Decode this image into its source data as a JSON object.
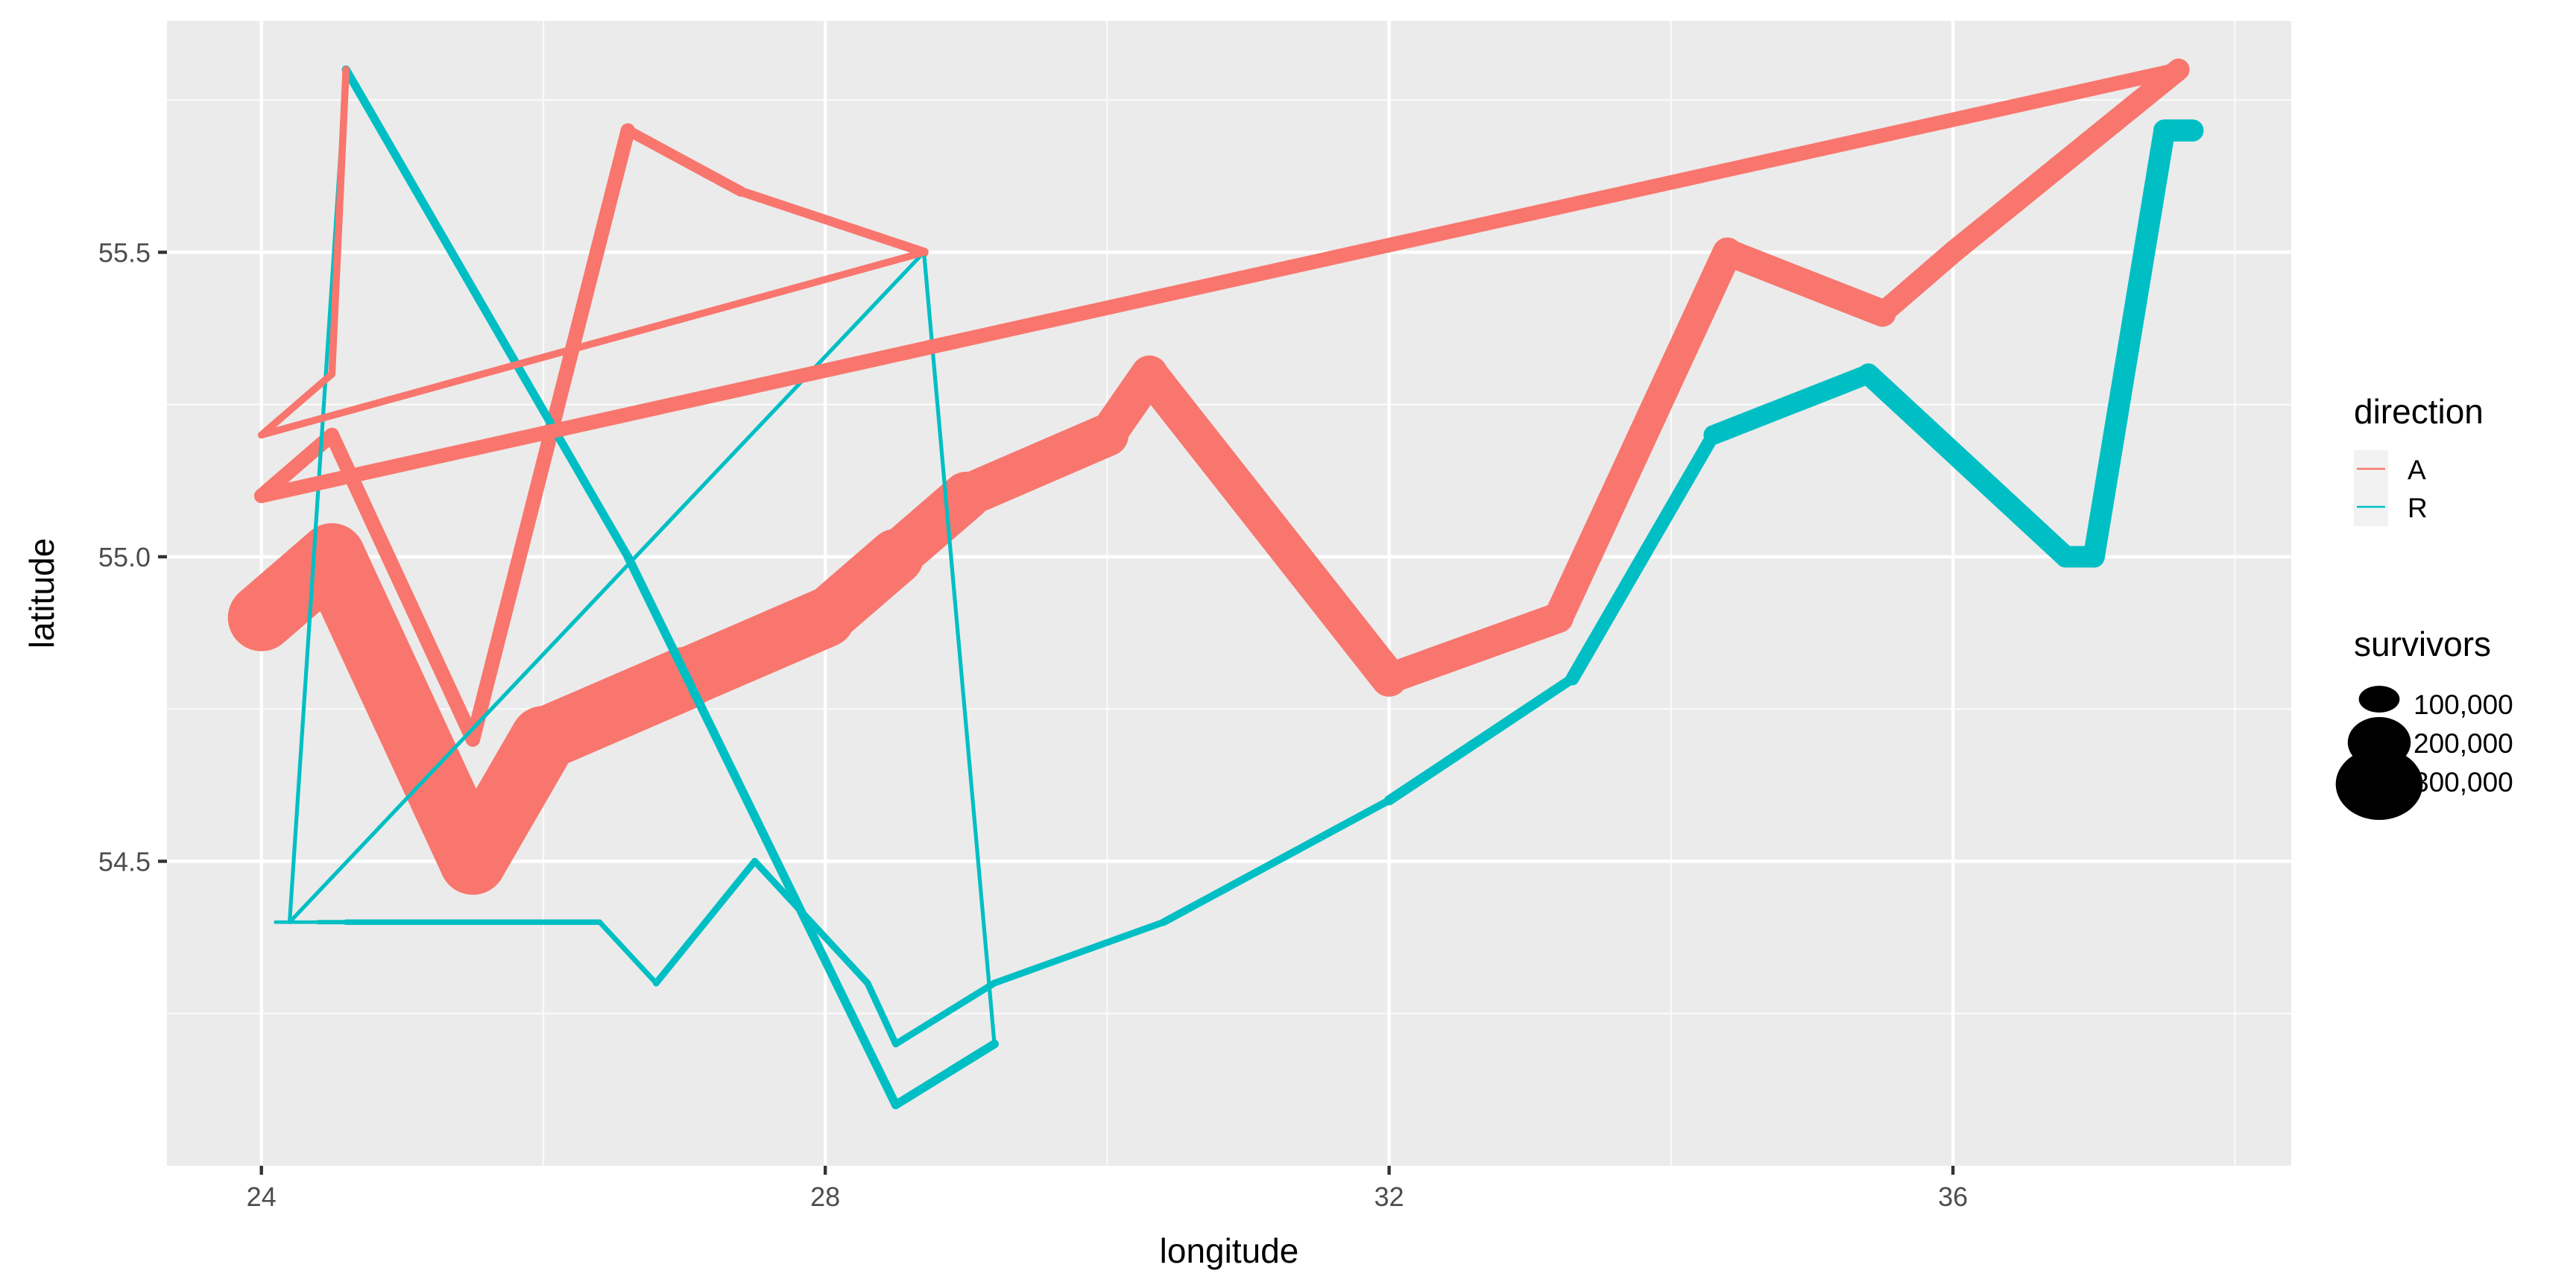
{
  "chart_data": {
    "type": "line",
    "title": "",
    "xlabel": "longitude",
    "ylabel": "latitude",
    "xlim": [
      23.33,
      38.4
    ],
    "ylim": [
      54.0,
      55.88
    ],
    "x_ticks": [
      24,
      28,
      32,
      36
    ],
    "x_tick_labels": [
      "24",
      "28",
      "32",
      "36"
    ],
    "y_ticks": [
      54.5,
      55.0,
      55.5
    ],
    "y_tick_labels": [
      "54.5",
      "55.0",
      "55.5"
    ],
    "x_minor_ticks": [
      26,
      30,
      34,
      38
    ],
    "y_minor_ticks": [
      54.25,
      54.75,
      55.25,
      55.75
    ],
    "grid": true,
    "panel_background": "#ebebeb",
    "legend_position": "right",
    "legends": {
      "color": {
        "title": "direction",
        "entries": [
          {
            "label": "A",
            "color": "#f8766d"
          },
          {
            "label": "R",
            "color": "#00bfc4"
          }
        ]
      },
      "size": {
        "title": "survivors",
        "entries": [
          {
            "label": "100,000",
            "value": 100000
          },
          {
            "label": "200,000",
            "value": 200000
          },
          {
            "label": "300,000",
            "value": 300000
          }
        ]
      }
    },
    "series": [
      {
        "group": 1,
        "direction": "A",
        "color": "#f8766d",
        "points": [
          {
            "x": 24.0,
            "y": 54.9,
            "survivors": 340000
          },
          {
            "x": 24.5,
            "y": 55.0,
            "survivors": 340000
          },
          {
            "x": 25.5,
            "y": 54.5,
            "survivors": 340000
          },
          {
            "x": 26.0,
            "y": 54.7,
            "survivors": 320000
          },
          {
            "x": 27.0,
            "y": 54.8,
            "survivors": 300000
          },
          {
            "x": 28.0,
            "y": 54.9,
            "survivors": 280000
          },
          {
            "x": 28.5,
            "y": 55.0,
            "survivors": 240000
          },
          {
            "x": 29.0,
            "y": 55.1,
            "survivors": 210000
          },
          {
            "x": 30.0,
            "y": 55.2,
            "survivors": 180000
          },
          {
            "x": 30.3,
            "y": 55.3,
            "survivors": 175000
          },
          {
            "x": 32.0,
            "y": 54.8,
            "survivors": 145000
          },
          {
            "x": 33.2,
            "y": 54.9,
            "survivors": 140000
          },
          {
            "x": 34.4,
            "y": 55.5,
            "survivors": 127100
          },
          {
            "x": 35.5,
            "y": 55.4,
            "survivors": 100000
          },
          {
            "x": 36.0,
            "y": 55.5,
            "survivors": 100000
          },
          {
            "x": 37.6,
            "y": 55.8,
            "survivors": 100000
          }
        ]
      },
      {
        "group": 1,
        "direction": "R",
        "color": "#00bfc4",
        "points": [
          {
            "x": 37.7,
            "y": 55.7,
            "survivors": 100000
          },
          {
            "x": 37.5,
            "y": 55.7,
            "survivors": 98000
          },
          {
            "x": 37.0,
            "y": 55.0,
            "survivors": 97000
          },
          {
            "x": 36.8,
            "y": 55.0,
            "survivors": 96000
          },
          {
            "x": 35.4,
            "y": 55.3,
            "survivors": 87000
          },
          {
            "x": 34.3,
            "y": 55.2,
            "survivors": 55000
          },
          {
            "x": 33.3,
            "y": 54.8,
            "survivors": 37000
          },
          {
            "x": 32.0,
            "y": 54.6,
            "survivors": 24000
          },
          {
            "x": 30.4,
            "y": 54.4,
            "survivors": 20000
          },
          {
            "x": 29.2,
            "y": 54.3,
            "survivors": 20000
          },
          {
            "x": 28.5,
            "y": 54.2,
            "survivors": 20000
          },
          {
            "x": 28.3,
            "y": 54.3,
            "survivors": 20000
          },
          {
            "x": 27.5,
            "y": 54.5,
            "survivors": 20000
          },
          {
            "x": 26.8,
            "y": 54.3,
            "survivors": 12000
          },
          {
            "x": 26.4,
            "y": 54.4,
            "survivors": 14000
          },
          {
            "x": 24.6,
            "y": 54.4,
            "survivors": 8000
          },
          {
            "x": 24.4,
            "y": 54.4,
            "survivors": 4000
          },
          {
            "x": 24.2,
            "y": 54.4,
            "survivors": 4000
          },
          {
            "x": 24.1,
            "y": 54.4,
            "survivors": 4000
          }
        ]
      },
      {
        "group": 2,
        "direction": "A",
        "color": "#f8766d",
        "points": [
          {
            "x": 24.0,
            "y": 55.1,
            "survivors": 60000
          },
          {
            "x": 24.5,
            "y": 55.2,
            "survivors": 60000
          },
          {
            "x": 25.5,
            "y": 54.7,
            "survivors": 60000
          },
          {
            "x": 26.6,
            "y": 55.7,
            "survivors": 40000
          },
          {
            "x": 27.4,
            "y": 55.6,
            "survivors": 33000
          },
          {
            "x": 28.7,
            "y": 55.5,
            "survivors": 33000
          }
        ]
      },
      {
        "group": 2,
        "direction": "R",
        "color": "#00bfc4",
        "points": [
          {
            "x": 29.2,
            "y": 54.2,
            "survivors": 30000
          },
          {
            "x": 28.5,
            "y": 54.1,
            "survivors": 30000
          },
          {
            "x": 26.6,
            "y": 55.0,
            "survivors": 28000
          },
          {
            "x": 24.6,
            "y": 55.8,
            "survivors": 6000
          }
        ]
      },
      {
        "group": 3,
        "direction": "R",
        "color": "#00bfc4",
        "points": [
          {
            "x": 24.6,
            "y": 55.8,
            "survivors": 6000
          },
          {
            "x": 24.2,
            "y": 54.4,
            "survivors": 6000
          },
          {
            "x": 28.7,
            "y": 55.5,
            "survivors": 6000
          },
          {
            "x": 29.2,
            "y": 54.2,
            "survivors": 30000
          }
        ]
      },
      {
        "group": 3,
        "direction": "A",
        "color": "#f8766d",
        "points": [
          {
            "x": 24.0,
            "y": 55.2,
            "survivors": 22000
          },
          {
            "x": 24.5,
            "y": 55.3,
            "survivors": 22000
          },
          {
            "x": 24.6,
            "y": 55.8,
            "survivors": 6000
          }
        ]
      },
      {
        "group": 4,
        "direction": "A",
        "color": "#f8766d",
        "points": [
          {
            "x": 24.0,
            "y": 55.2,
            "survivors": 22000
          },
          {
            "x": 28.7,
            "y": 55.5,
            "survivors": 22000
          }
        ]
      },
      {
        "group": 5,
        "direction": "A",
        "color": "#f8766d",
        "points": [
          {
            "x": 24.0,
            "y": 55.1,
            "survivors": 60000
          },
          {
            "x": 37.6,
            "y": 55.8,
            "survivors": 60000
          }
        ]
      }
    ]
  }
}
